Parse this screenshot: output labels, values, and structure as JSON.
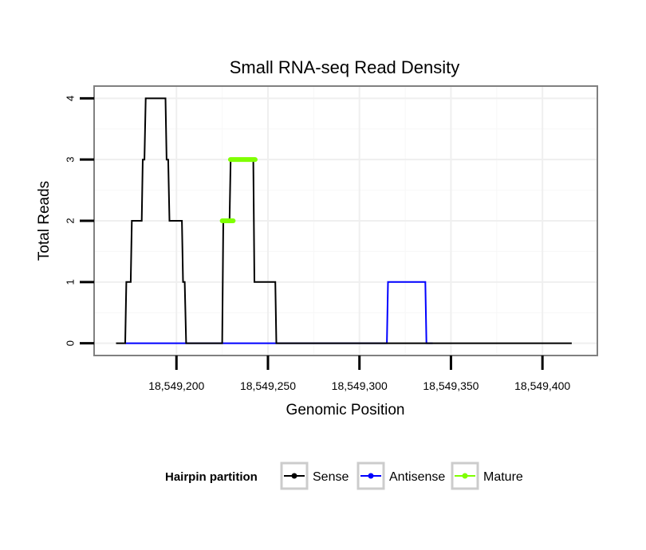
{
  "chart_data": {
    "type": "line",
    "title": "Small RNA-seq Read Density",
    "xlabel": "Genomic Position",
    "ylabel": "Total Reads",
    "xlim": [
      18549155,
      18549430
    ],
    "ylim": [
      -0.2,
      4.2
    ],
    "x_ticks": [
      18549200,
      18549250,
      18549300,
      18549350,
      18549400
    ],
    "x_tick_labels": [
      "18,549,200",
      "18,549,250",
      "18,549,300",
      "18,549,350",
      "18,549,400"
    ],
    "y_ticks": [
      0,
      1,
      2,
      3,
      4
    ],
    "y_tick_labels": [
      "0",
      "1",
      "2",
      "3",
      "4"
    ],
    "grid": true,
    "legend": {
      "title": "Hairpin partition",
      "position": "bottom",
      "items": [
        "Sense",
        "Antisense",
        "Mature"
      ]
    },
    "series": [
      {
        "name": "Sense",
        "color": "#000000",
        "points": [
          [
            18549167,
            0
          ],
          [
            18549172,
            0
          ],
          [
            18549172.6,
            1
          ],
          [
            18549175,
            1
          ],
          [
            18549175.6,
            2
          ],
          [
            18549181,
            2
          ],
          [
            18549181.6,
            3
          ],
          [
            18549182.5,
            3
          ],
          [
            18549183.2,
            4
          ],
          [
            18549194,
            4
          ],
          [
            18549194.6,
            3
          ],
          [
            18549195.5,
            3
          ],
          [
            18549196.2,
            2
          ],
          [
            18549203,
            2
          ],
          [
            18549203.6,
            1
          ],
          [
            18549204.5,
            1
          ],
          [
            18549205.3,
            0
          ],
          [
            18549225,
            0
          ],
          [
            18549225.6,
            2
          ],
          [
            18549229,
            2
          ],
          [
            18549229.6,
            3
          ],
          [
            18549242,
            3
          ],
          [
            18549242.6,
            1
          ],
          [
            18549254,
            1
          ],
          [
            18549254.6,
            0
          ],
          [
            18549416,
            0
          ]
        ]
      },
      {
        "name": "Antisense",
        "color": "#0000ff",
        "points": [
          [
            18549172,
            0
          ],
          [
            18549315,
            0
          ],
          [
            18549315.6,
            1
          ],
          [
            18549336,
            1
          ],
          [
            18549336.6,
            0
          ],
          [
            18549340,
            0
          ]
        ]
      },
      {
        "name": "Mature",
        "color": "#7fff00",
        "segments": [
          {
            "x": [
              18549225,
              18549231
            ],
            "y": 2
          },
          {
            "x": [
              18549229.5,
              18549243
            ],
            "y": 3
          }
        ]
      }
    ]
  }
}
